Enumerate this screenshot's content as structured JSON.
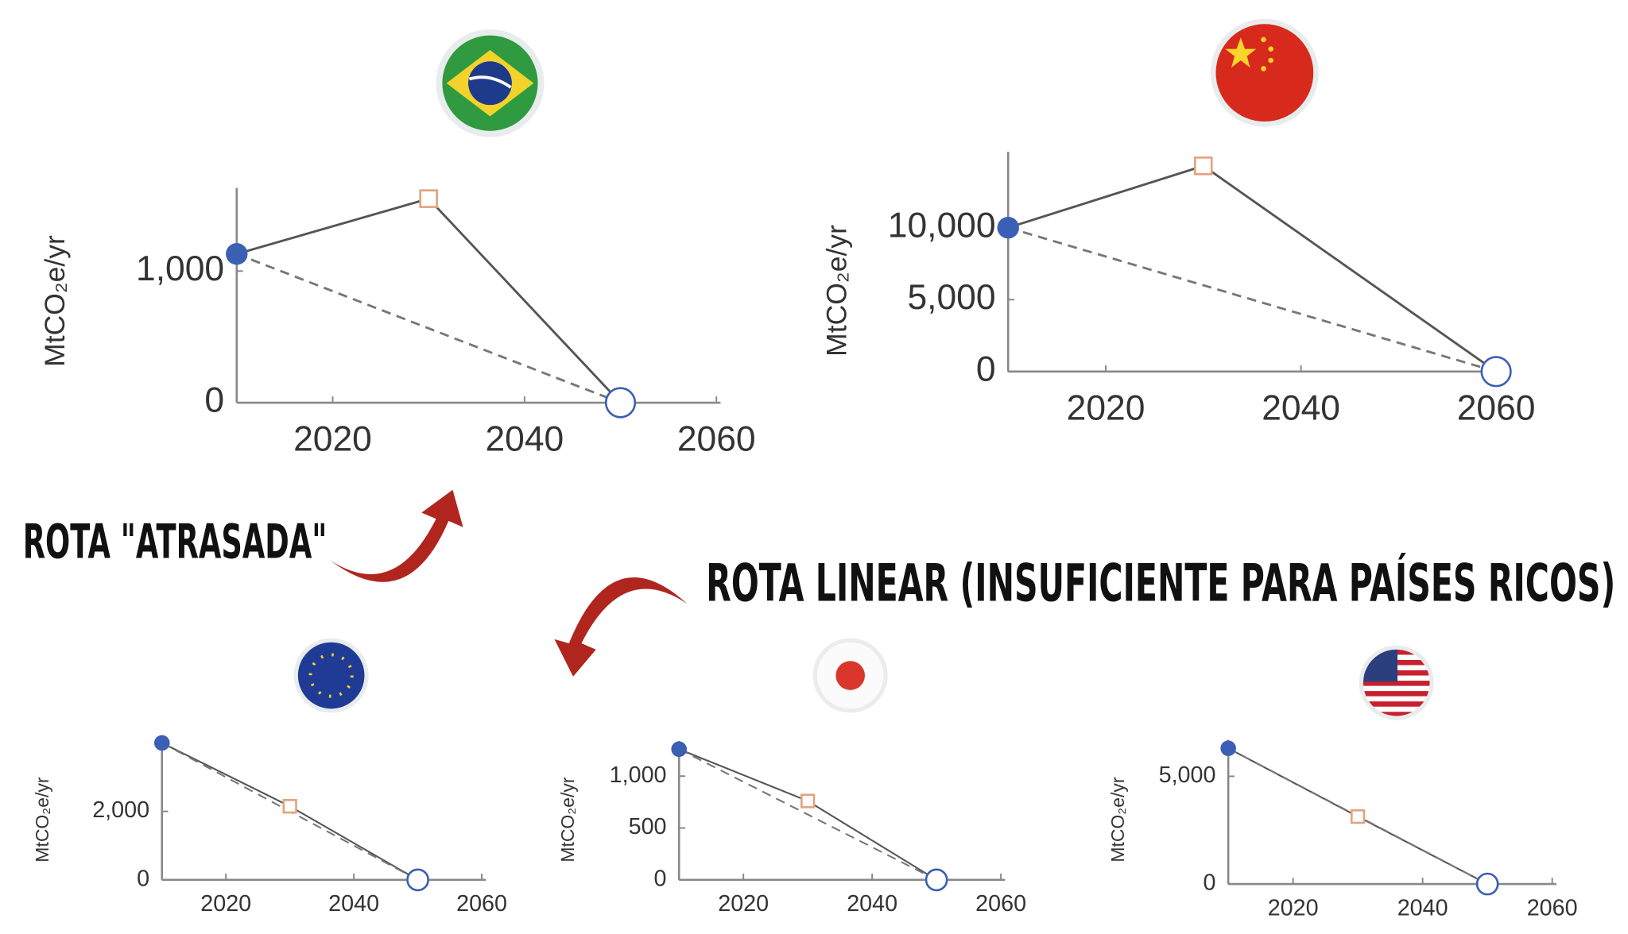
{
  "chart_data": [
    {
      "type": "line",
      "y_label": "MtCO₂e/yr",
      "xlim": [
        2010,
        2060
      ],
      "xticks": [
        2020,
        2040,
        2060
      ],
      "ylim": [
        0,
        1600
      ],
      "yticks": [
        0,
        {
          "value": 1000,
          "label": "1,000"
        }
      ],
      "series": [
        {
          "color": "#555555",
          "dash": false,
          "x": [
            2010,
            2030,
            2050
          ],
          "values": [
            1130,
            1550,
            0
          ],
          "markers": [
            "filled-circle",
            "open-square",
            "open-circle"
          ]
        },
        {
          "color": "#777777",
          "dash": true,
          "x": [
            2010,
            2050
          ],
          "values": [
            1130,
            0
          ]
        }
      ]
    },
    {
      "type": "line",
      "y_label": "MtCO₂e/yr",
      "xlim": [
        2010,
        2060
      ],
      "xticks": [
        2020,
        2040,
        2060
      ],
      "ylim": [
        0,
        15000
      ],
      "yticks": [
        0,
        {
          "value": 5000,
          "label": "5,000"
        },
        {
          "value": 10000,
          "label": "10,000"
        }
      ],
      "series": [
        {
          "color": "#555555",
          "dash": false,
          "x": [
            2010,
            2030,
            2060
          ],
          "values": [
            10000,
            14300,
            0
          ],
          "markers": [
            "filled-circle",
            "open-square",
            "open-circle"
          ]
        },
        {
          "color": "#777777",
          "dash": true,
          "x": [
            2010,
            2060
          ],
          "values": [
            10000,
            0
          ]
        }
      ]
    },
    {
      "type": "line",
      "y_label": "MtCO₂e/yr",
      "xlim": [
        2010,
        2060
      ],
      "xticks": [
        2020,
        2040,
        2060
      ],
      "ylim": [
        0,
        4000
      ],
      "yticks": [
        0,
        {
          "value": 2000,
          "label": "2,000"
        }
      ],
      "series": [
        {
          "color": "#555555",
          "dash": false,
          "x": [
            2010,
            2030,
            2050
          ],
          "values": [
            4000,
            2150,
            0
          ],
          "markers": [
            "filled-circle",
            "open-square",
            "open-circle"
          ]
        },
        {
          "color": "#777777",
          "dash": true,
          "x": [
            2010,
            2050
          ],
          "values": [
            4000,
            0
          ]
        }
      ]
    },
    {
      "type": "line",
      "y_label": "MtCO₂e/yr",
      "xlim": [
        2010,
        2060
      ],
      "xticks": [
        2020,
        2040,
        2060
      ],
      "ylim": [
        0,
        1300
      ],
      "yticks": [
        0,
        500,
        {
          "value": 1000,
          "label": "1,000"
        }
      ],
      "series": [
        {
          "color": "#555555",
          "dash": false,
          "x": [
            2010,
            2030,
            2050
          ],
          "values": [
            1260,
            760,
            0
          ],
          "markers": [
            "filled-circle",
            "open-square",
            "open-circle"
          ]
        },
        {
          "color": "#777777",
          "dash": true,
          "x": [
            2010,
            2050
          ],
          "values": [
            1260,
            0
          ]
        }
      ]
    },
    {
      "type": "line",
      "y_label": "MtCO₂e/yr",
      "xlim": [
        2010,
        2060
      ],
      "xticks": [
        2020,
        2040,
        2060
      ],
      "ylim": [
        0,
        6500
      ],
      "yticks": [
        0,
        {
          "value": 5000,
          "label": "5,000"
        }
      ],
      "series": [
        {
          "color": "#555555",
          "dash": false,
          "x": [
            2010,
            2030,
            2050
          ],
          "values": [
            6300,
            3130,
            0
          ],
          "markers": [
            "filled-circle",
            "open-square",
            "open-circle"
          ]
        },
        {
          "color": "#777777",
          "dash": true,
          "x": [
            2010,
            2050
          ],
          "values": [
            6300,
            0
          ]
        }
      ]
    }
  ],
  "annotations": [
    "ROTA \"ATRASADA\"",
    "ROTA LINEAR (INSUFICIENTE PARA PAÍSES RICOS)"
  ]
}
